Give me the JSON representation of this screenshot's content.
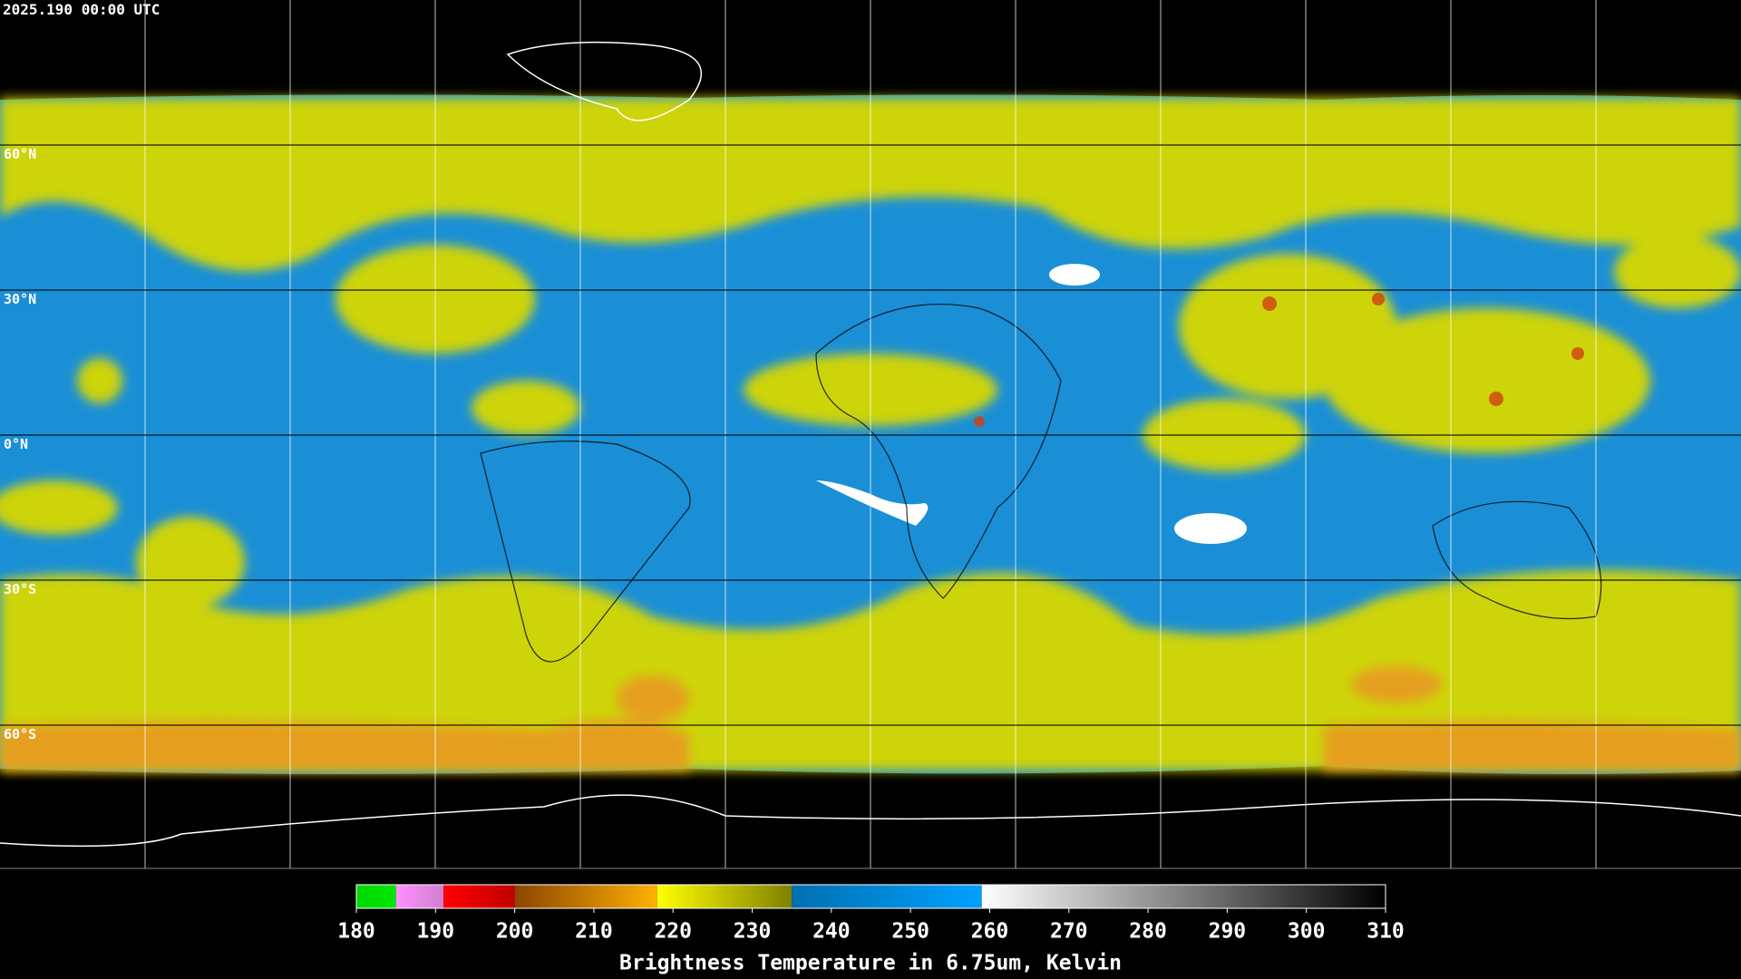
{
  "header": {
    "title": "2025.190 00:00 UTC"
  },
  "map": {
    "lat_lines": [
      {
        "value": 60,
        "label": "60°N"
      },
      {
        "value": 30,
        "label": "30°N"
      },
      {
        "value": 0,
        "label": "0°N"
      },
      {
        "value": -30,
        "label": "30°S"
      },
      {
        "value": -60,
        "label": "60°S"
      }
    ]
  },
  "colorbar": {
    "lim": [
      180,
      310
    ],
    "ticks": [
      180,
      190,
      200,
      210,
      220,
      230,
      240,
      250,
      260,
      270,
      280,
      290,
      300,
      310
    ],
    "segments": [
      {
        "from": 180,
        "to": 185,
        "colors": [
          "#00d800",
          "#00e800"
        ]
      },
      {
        "from": 185,
        "to": 191,
        "colors": [
          "#ff90ff",
          "#d080d0"
        ]
      },
      {
        "from": 191,
        "to": 200,
        "colors": [
          "#ff0000",
          "#c00000"
        ]
      },
      {
        "from": 200,
        "to": 218,
        "colors": [
          "#8b4500",
          "#ffb000"
        ]
      },
      {
        "from": 218,
        "to": 235,
        "colors": [
          "#ffff00",
          "#808000"
        ]
      },
      {
        "from": 235,
        "to": 259,
        "colors": [
          "#0070b0",
          "#00a0ff"
        ]
      },
      {
        "from": 259,
        "to": 310,
        "colors": [
          "#ffffff",
          "#000000"
        ]
      }
    ],
    "label": "Brightness Temperature in 6.75um, Kelvin"
  }
}
